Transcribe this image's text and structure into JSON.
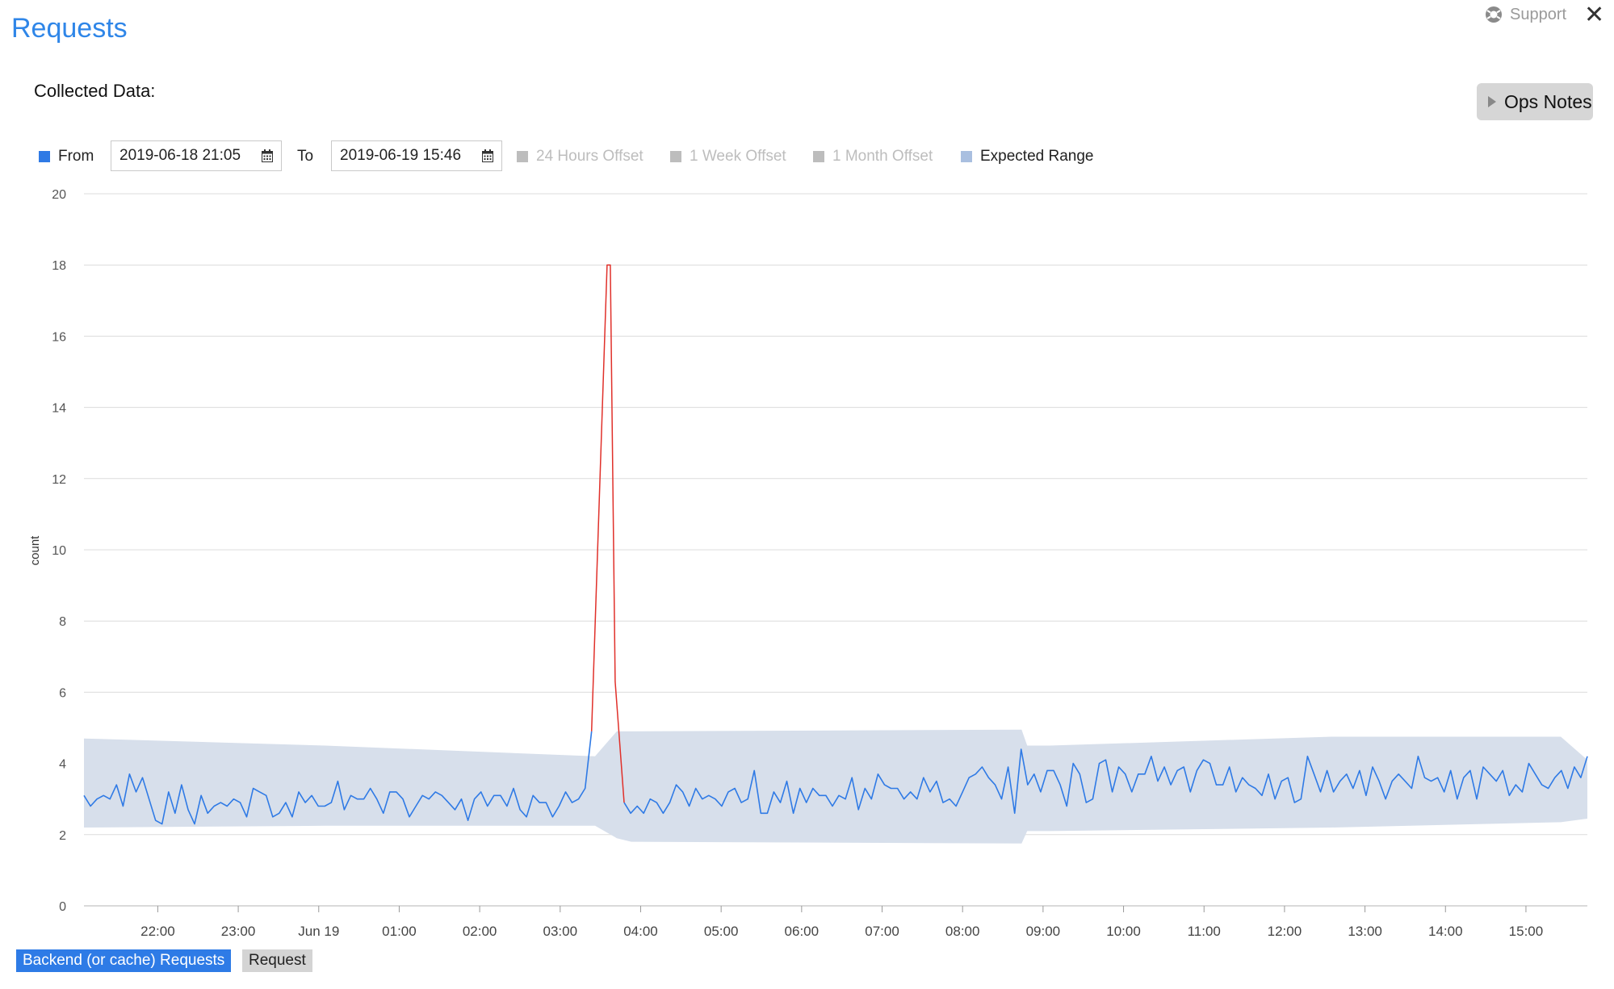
{
  "header": {
    "title": "Requests",
    "support_label": "Support",
    "close_icon": "close-icon",
    "support_icon": "lifebuoy-icon"
  },
  "collected_label": "Collected Data:",
  "ops_notes_label": "Ops Notes",
  "legend": {
    "from_label": "From",
    "from_value": "2019-06-18 21:05",
    "to_label": "To",
    "to_value": "2019-06-19 15:46",
    "offset_24h": "24 Hours Offset",
    "offset_1w": "1 Week Offset",
    "offset_1m": "1 Month Offset",
    "expected_range": "Expected Range"
  },
  "colors": {
    "series": "#2f7ae5",
    "anomaly": "#e0302a",
    "range": "#d7dfeb",
    "disabled": "#bdbdbd",
    "title": "#2f86e8"
  },
  "chips": {
    "backend": "Backend (or cache) Requests",
    "request": "Request"
  },
  "chart_data": {
    "type": "line",
    "title": "",
    "xlabel": "",
    "ylabel": "count",
    "ylim": [
      0,
      20
    ],
    "yticks": [
      "0",
      "2",
      "4",
      "6",
      "8",
      "10",
      "12",
      "14",
      "16",
      "18",
      "20"
    ],
    "x_range": [
      "21:05",
      "15:46"
    ],
    "xticks": [
      {
        "label": "22:00",
        "t": 0.917
      },
      {
        "label": "23:00",
        "t": 1.917
      },
      {
        "label": "Jun 19",
        "t": 2.917
      },
      {
        "label": "01:00",
        "t": 3.917
      },
      {
        "label": "02:00",
        "t": 4.917
      },
      {
        "label": "03:00",
        "t": 5.917
      },
      {
        "label": "04:00",
        "t": 6.917
      },
      {
        "label": "05:00",
        "t": 7.917
      },
      {
        "label": "06:00",
        "t": 8.917
      },
      {
        "label": "07:00",
        "t": 9.917
      },
      {
        "label": "08:00",
        "t": 10.917
      },
      {
        "label": "09:00",
        "t": 11.917
      },
      {
        "label": "10:00",
        "t": 12.917
      },
      {
        "label": "11:00",
        "t": 13.917
      },
      {
        "label": "12:00",
        "t": 14.917
      },
      {
        "label": "13:00",
        "t": 15.917
      },
      {
        "label": "14:00",
        "t": 16.917
      },
      {
        "label": "15:00",
        "t": 17.917
      }
    ],
    "anomaly": {
      "start_t": 6.38,
      "peak_t": 6.5,
      "end_t": 6.64,
      "peak_value": 18
    },
    "expected_range": [
      {
        "t": 0.0,
        "low": 2.2,
        "high": 4.7
      },
      {
        "t": 3.0,
        "low": 2.25,
        "high": 4.5
      },
      {
        "t": 6.35,
        "low": 2.25,
        "high": 4.2
      },
      {
        "t": 6.62,
        "low": 1.9,
        "high": 4.9
      },
      {
        "t": 6.8,
        "low": 1.8,
        "high": 4.9
      },
      {
        "t": 11.65,
        "low": 1.75,
        "high": 4.95
      },
      {
        "t": 11.72,
        "low": 2.1,
        "high": 4.5
      },
      {
        "t": 12.0,
        "low": 2.1,
        "high": 4.5
      },
      {
        "t": 15.5,
        "low": 2.2,
        "high": 4.75
      },
      {
        "t": 18.35,
        "low": 2.35,
        "high": 4.75
      },
      {
        "t": 18.68,
        "low": 2.45,
        "high": 4.1
      }
    ],
    "series": [
      {
        "name": "Backend (or cache) Requests",
        "t_start": 0.0,
        "t_end": 18.68,
        "values": [
          3.1,
          2.8,
          3.0,
          3.1,
          3.0,
          3.4,
          2.8,
          3.7,
          3.2,
          3.6,
          3.0,
          2.4,
          2.3,
          3.2,
          2.6,
          3.4,
          2.7,
          2.3,
          3.1,
          2.6,
          2.8,
          2.9,
          2.8,
          3.0,
          2.9,
          2.5,
          3.3,
          3.2,
          3.1,
          2.5,
          2.6,
          2.9,
          2.5,
          3.2,
          2.9,
          3.1,
          2.8,
          2.8,
          2.9,
          3.5,
          2.7,
          3.1,
          3.0,
          3.0,
          3.3,
          3.0,
          2.6,
          3.2,
          3.2,
          3.0,
          2.5,
          2.8,
          3.1,
          3.0,
          3.2,
          3.1,
          2.9,
          2.7,
          3.0,
          2.4,
          3.0,
          3.2,
          2.8,
          3.1,
          3.1,
          2.8,
          3.3,
          2.7,
          2.5,
          3.1,
          2.9,
          2.9,
          2.5,
          2.8,
          3.2,
          2.9,
          3.0,
          3.3,
          4.9,
          2.8,
          2.4,
          3.7,
          3.2,
          2.9,
          2.6,
          2.8,
          2.6,
          3.0,
          2.9,
          2.6,
          2.9,
          3.4,
          3.2,
          2.8,
          3.3,
          3.0,
          3.1,
          3.0,
          2.8,
          3.2,
          3.3,
          2.9,
          3.0,
          3.8,
          2.6,
          2.6,
          3.2,
          2.9,
          3.5,
          2.6,
          3.3,
          2.9,
          3.3,
          3.1,
          3.1,
          2.8,
          3.1,
          3.0,
          3.6,
          2.7,
          3.3,
          3.0,
          3.7,
          3.4,
          3.3,
          3.3,
          3.0,
          3.2,
          3.0,
          3.6,
          3.2,
          3.5,
          2.9,
          3.0,
          2.8,
          3.2,
          3.6,
          3.7,
          3.9,
          3.6,
          3.4,
          3.0,
          3.9,
          2.6,
          4.4,
          3.4,
          3.7,
          3.2,
          3.8,
          3.8,
          3.4,
          2.8,
          4.0,
          3.7,
          2.9,
          3.0,
          4.0,
          4.1,
          3.2,
          3.9,
          3.7,
          3.2,
          3.7,
          3.7,
          4.2,
          3.5,
          3.9,
          3.4,
          3.8,
          3.9,
          3.2,
          3.8,
          4.1,
          4.0,
          3.4,
          3.4,
          3.9,
          3.2,
          3.6,
          3.4,
          3.3,
          3.1,
          3.7,
          3.0,
          3.5,
          3.6,
          2.9,
          3.0,
          4.2,
          3.7,
          3.2,
          3.8,
          3.2,
          3.5,
          3.7,
          3.3,
          3.8,
          3.1,
          3.9,
          3.5,
          3.0,
          3.5,
          3.7,
          3.5,
          3.3,
          4.2,
          3.6,
          3.5,
          3.6,
          3.2,
          3.8,
          3.0,
          3.6,
          3.8,
          3.0,
          3.9,
          3.7,
          3.5,
          3.8,
          3.1,
          3.4,
          3.2,
          4.0,
          3.7,
          3.4,
          3.3,
          3.6,
          3.8,
          3.3,
          3.9,
          3.6,
          4.2
        ]
      }
    ],
    "grid": true
  }
}
